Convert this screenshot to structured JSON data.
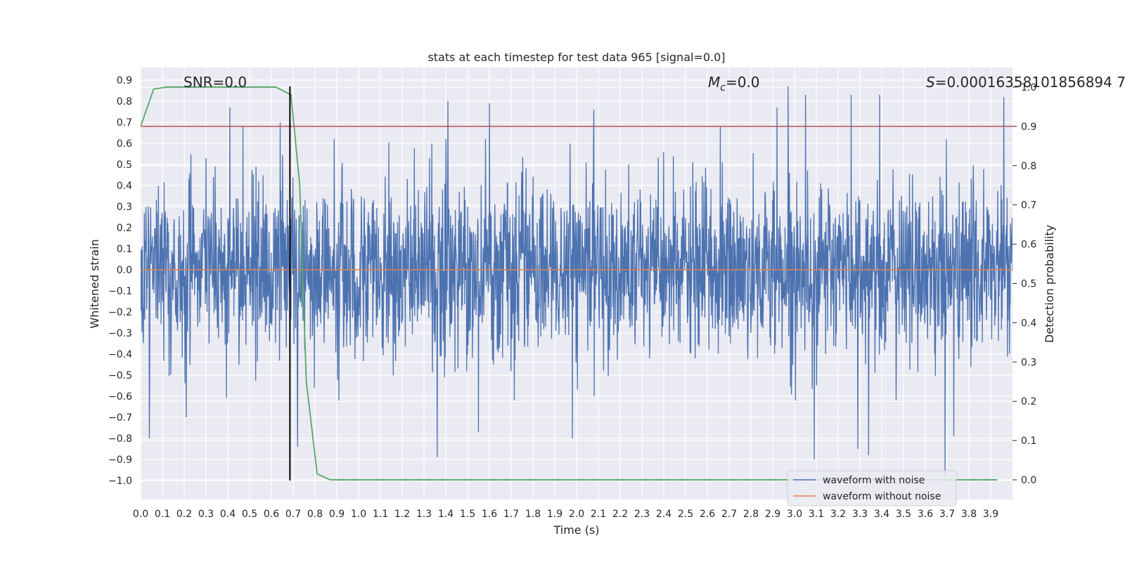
{
  "chart_data": {
    "type": "line",
    "title": "stats at each timestep for test data 965 [signal=0.0]",
    "xlabel": "Time (s)",
    "ylabel": "Whitened strain",
    "y2label": "Detection probability",
    "xlim": [
      0.0,
      4.0
    ],
    "ylim": [
      -1.09,
      0.96
    ],
    "y2lim": [
      -0.05,
      1.05
    ],
    "x_ticks": [
      0.0,
      0.1,
      0.2,
      0.3,
      0.4,
      0.5,
      0.6,
      0.7,
      0.8,
      0.9,
      1.0,
      1.1,
      1.2,
      1.3,
      1.4,
      1.5,
      1.6,
      1.7,
      1.8,
      1.9,
      2.0,
      2.1,
      2.2,
      2.3,
      2.4,
      2.5,
      2.6,
      2.7,
      2.8,
      2.9,
      3.0,
      3.1,
      3.2,
      3.3,
      3.4,
      3.5,
      3.6,
      3.7,
      3.8,
      3.9
    ],
    "x_tick_labels": [
      "0.0",
      "0.1",
      "0.2",
      "0.3",
      "0.4",
      "0.5",
      "0.6",
      "0.7",
      "0.8",
      "0.9",
      "1.0",
      "1.1",
      "1.2",
      "1.3",
      "1.4",
      "1.5",
      "1.6",
      "1.7",
      "1.8",
      "1.9",
      "2.0",
      "2.1",
      "2.2",
      "2.3",
      "2.4",
      "2.5",
      "2.6",
      "2.7",
      "2.8",
      "2.9",
      "3.0",
      "3.1",
      "3.2",
      "3.3",
      "3.4",
      "3.5",
      "3.6",
      "3.7",
      "3.8",
      "3.9"
    ],
    "y_ticks": [
      0.9,
      0.8,
      0.7,
      0.6,
      0.5,
      0.4,
      0.3,
      0.2,
      0.1,
      0.0,
      -0.1,
      -0.2,
      -0.3,
      -0.4,
      -0.5,
      -0.6,
      -0.7,
      -0.8,
      -0.9,
      -1.0
    ],
    "y_tick_labels": [
      "0.9",
      "0.8",
      "0.7",
      "0.6",
      "0.5",
      "0.4",
      "0.3",
      "0.2",
      "0.1",
      "0.0",
      "−0.1",
      "−0.2",
      "−0.3",
      "−0.4",
      "−0.5",
      "−0.6",
      "−0.7",
      "−0.8",
      "−0.9",
      "−1.0"
    ],
    "y2_ticks": [
      1.0,
      0.9,
      0.8,
      0.7,
      0.6,
      0.5,
      0.4,
      0.3,
      0.2,
      0.1,
      0.0
    ],
    "y2_tick_labels": [
      "1.0",
      "0.9",
      "0.8",
      "0.7",
      "0.6",
      "0.5",
      "0.4",
      "0.3",
      "0.2",
      "0.1",
      "0.0"
    ],
    "grid": true,
    "legend_position": "lower-right",
    "annotations": {
      "snr": "SNR=0.0",
      "mc_symbol": "M",
      "mc_subscript": "c",
      "mc_value": "=0.0",
      "s_symbol": "S",
      "s_value": "=0.00016358101856894 7"
    },
    "series": [
      {
        "name": "waveform with noise",
        "color": "#4c72b0",
        "axis": "left",
        "kind": "noise",
        "x_range": [
          0.0,
          4.0
        ],
        "typical_amplitude": 0.2,
        "approx_min": -0.98,
        "approx_max": 0.87,
        "peaks": [
          [
            0.3,
            0.53
          ],
          [
            0.41,
            0.77
          ],
          [
            0.47,
            0.68
          ],
          [
            0.64,
            0.7
          ],
          [
            1.41,
            0.8
          ],
          [
            1.6,
            0.79
          ],
          [
            2.08,
            0.76
          ],
          [
            2.66,
            0.68
          ],
          [
            2.92,
            0.77
          ],
          [
            2.97,
            0.87
          ],
          [
            3.05,
            0.83
          ],
          [
            3.26,
            0.83
          ],
          [
            3.39,
            0.83
          ],
          [
            3.96,
            0.82
          ]
        ],
        "troughs": [
          [
            0.04,
            -0.8
          ],
          [
            0.21,
            -0.7
          ],
          [
            0.72,
            -0.84
          ],
          [
            1.36,
            -0.89
          ],
          [
            1.55,
            -0.77
          ],
          [
            1.98,
            -0.8
          ],
          [
            3.09,
            -0.9
          ],
          [
            3.29,
            -0.85
          ],
          [
            3.34,
            -0.88
          ],
          [
            3.69,
            -0.98
          ],
          [
            3.73,
            -0.79
          ]
        ]
      },
      {
        "name": "waveform without noise",
        "color": "#dd8452",
        "axis": "left",
        "x": [
          0.0,
          4.0
        ],
        "y": [
          0.0,
          0.0
        ]
      },
      {
        "name": "",
        "color": "#55a868",
        "axis": "right",
        "x": [
          0.0,
          0.06,
          0.12,
          0.62,
          0.69,
          0.73,
          0.76,
          0.81,
          0.87,
          0.9,
          1.2,
          2.0,
          3.0,
          3.93
        ],
        "y": [
          0.9,
          0.995,
          1.0,
          1.0,
          0.98,
          0.75,
          0.25,
          0.015,
          0.0,
          0.0,
          0.0,
          0.0,
          0.0,
          0.0
        ]
      }
    ],
    "reference_lines": [
      {
        "orientation": "horizontal",
        "axis": "right",
        "value": 0.9,
        "color": "#c44e52"
      },
      {
        "orientation": "vertical",
        "value": 0.685,
        "y_from": -1.0,
        "y_to": 0.87,
        "color": "#000000"
      }
    ]
  }
}
